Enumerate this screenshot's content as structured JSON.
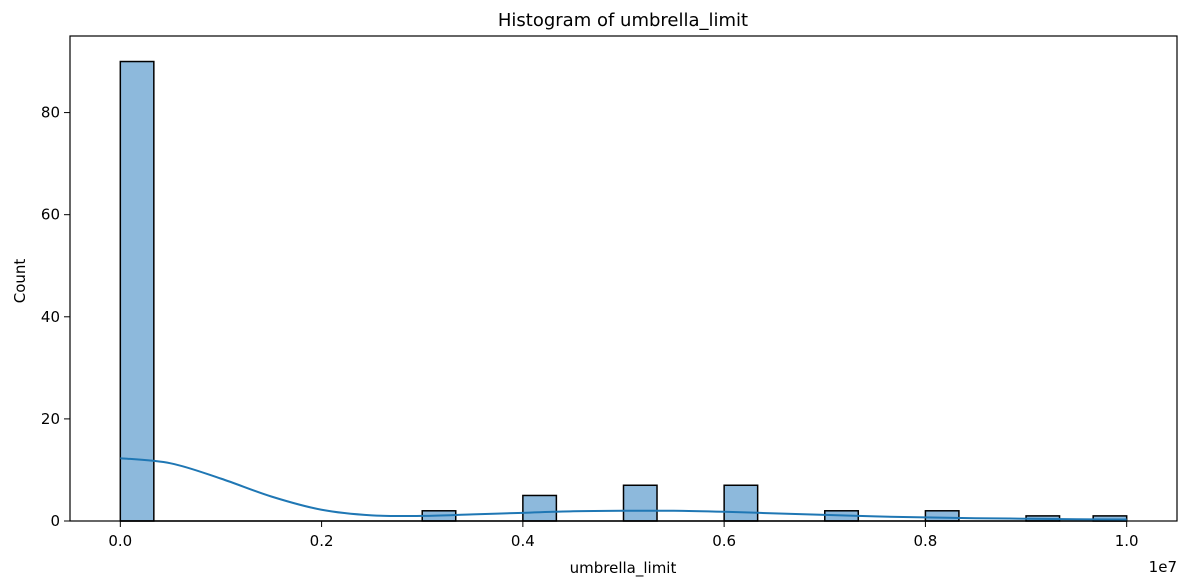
{
  "chart_data": {
    "type": "bar",
    "title": "Histogram of umbrella_limit",
    "xlabel": "umbrella_limit",
    "ylabel": "Count",
    "x_offset_label": "1e7",
    "xlim": [
      -0.05,
      1.05
    ],
    "ylim": [
      0,
      95
    ],
    "x_ticks": [
      0.0,
      0.2,
      0.4,
      0.6,
      0.8,
      1.0
    ],
    "x_tick_labels": [
      "0.0",
      "0.2",
      "0.4",
      "0.6",
      "0.8",
      "1.0"
    ],
    "y_ticks": [
      0,
      20,
      40,
      60,
      80
    ],
    "y_tick_labels": [
      "0",
      "20",
      "40",
      "60",
      "80"
    ],
    "bins": [
      {
        "start": 0.0,
        "end": 0.0333,
        "count": 90
      },
      {
        "start": 0.3,
        "end": 0.3333,
        "count": 2
      },
      {
        "start": 0.4,
        "end": 0.4333,
        "count": 5
      },
      {
        "start": 0.5,
        "end": 0.5333,
        "count": 7
      },
      {
        "start": 0.6,
        "end": 0.6333,
        "count": 7
      },
      {
        "start": 0.7,
        "end": 0.7333,
        "count": 2
      },
      {
        "start": 0.8,
        "end": 0.8333,
        "count": 2
      },
      {
        "start": 0.9,
        "end": 0.9333,
        "count": 1
      },
      {
        "start": 0.9667,
        "end": 1.0,
        "count": 1
      }
    ],
    "kde": {
      "x": [
        0.0,
        0.05,
        0.1,
        0.15,
        0.2,
        0.25,
        0.3,
        0.35,
        0.4,
        0.45,
        0.5,
        0.55,
        0.6,
        0.65,
        0.7,
        0.75,
        0.8,
        0.85,
        0.9,
        0.95,
        1.0
      ],
      "y": [
        12.3,
        11.3,
        8.3,
        4.8,
        2.2,
        1.1,
        1.0,
        1.3,
        1.6,
        1.9,
        2.0,
        2.0,
        1.8,
        1.5,
        1.2,
        0.9,
        0.7,
        0.55,
        0.45,
        0.35,
        0.3
      ]
    },
    "colors": {
      "bar_fill": "#8db9dc",
      "bar_edge": "#000000",
      "kde_line": "#1f77b4"
    },
    "grid": false,
    "legend": "none"
  }
}
